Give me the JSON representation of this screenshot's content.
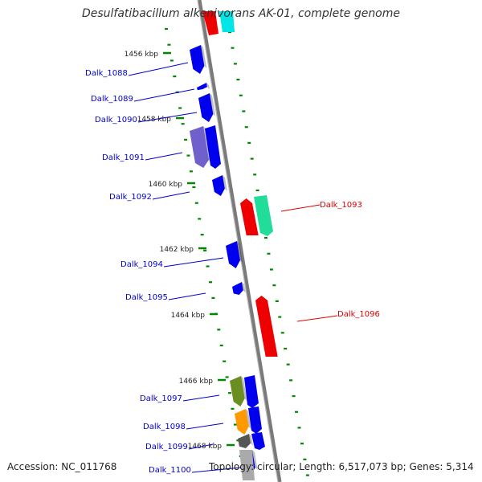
{
  "title": "Desulfatibacillum alkenivorans AK-01, complete genome",
  "footer": {
    "accession": "Accession: NC_011768",
    "summary": "Topology: circular; Length: 6,517,073 bp; Genes: 5,314"
  },
  "colors": {
    "forward_label": "#0000cc",
    "reverse_label": "#dd0000",
    "axis": "#888888",
    "tick": "#008800"
  },
  "kbp_ticks": [
    {
      "label": "1456 kbp"
    },
    {
      "label": "1458 kbp"
    },
    {
      "label": "1460 kbp"
    },
    {
      "label": "1462 kbp"
    },
    {
      "label": "1464 kbp"
    },
    {
      "label": "1466 kbp"
    },
    {
      "label": "1468 kbp"
    }
  ],
  "genes": [
    {
      "label": "Dalk_1088",
      "strand": "forward",
      "color": "#0000ee"
    },
    {
      "label": "Dalk_1089",
      "strand": "forward",
      "color": "#0000ee"
    },
    {
      "label": "Dalk_1090",
      "strand": "forward",
      "color": "#0000ee"
    },
    {
      "label": "Dalk_1091",
      "strand": "forward",
      "color": "#7060cc"
    },
    {
      "label": "Dalk_1092",
      "strand": "forward",
      "color": "#0000ee"
    },
    {
      "label": "Dalk_1093",
      "strand": "reverse",
      "color": "#ee0000"
    },
    {
      "label": "Dalk_1094",
      "strand": "forward",
      "color": "#0000ee"
    },
    {
      "label": "Dalk_1095",
      "strand": "forward",
      "color": "#0000ee"
    },
    {
      "label": "Dalk_1096",
      "strand": "reverse",
      "color": "#ee0000"
    },
    {
      "label": "Dalk_1097",
      "strand": "forward",
      "color": "#6b8e23"
    },
    {
      "label": "Dalk_1098",
      "strand": "forward",
      "color": "#ff9900"
    },
    {
      "label": "Dalk_1099",
      "strand": "forward",
      "color": "#555555"
    },
    {
      "label": "Dalk_1100",
      "strand": "forward",
      "color": "#0000ee"
    }
  ]
}
